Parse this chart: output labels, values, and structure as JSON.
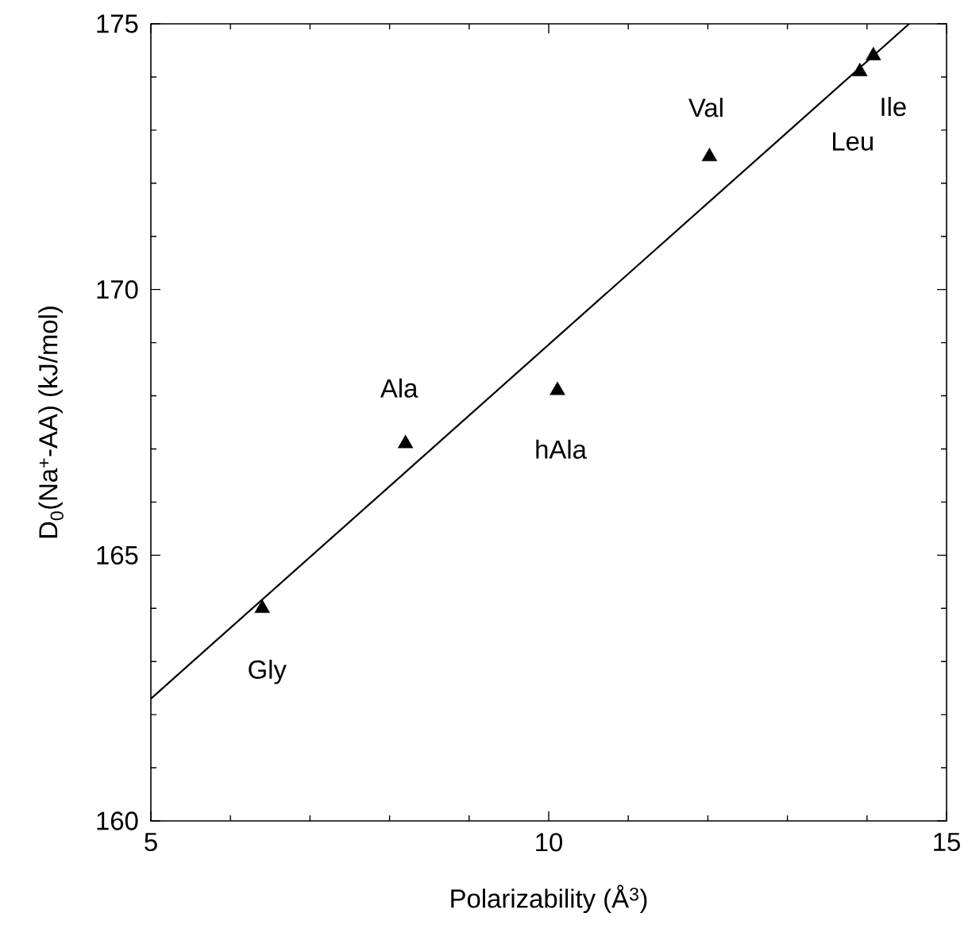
{
  "chart_data": {
    "type": "scatter",
    "xlabel": "Polarizability (Å$^{3}$)",
    "ylabel": "D$_{0}$(Na$^{+}$-AA) (kJ/mol)",
    "xlim": [
      5,
      15
    ],
    "ylim": [
      160,
      175
    ],
    "xticks": [
      5,
      10,
      15
    ],
    "yticks": [
      160,
      165,
      170,
      175
    ],
    "marker": "triangle",
    "grid": false,
    "series": [
      {
        "color": "#000000",
        "x": [
          6.4,
          8.2,
          10.11,
          12.02,
          13.91,
          14.08
        ],
        "values": [
          164.0,
          167.1,
          168.1,
          172.5,
          174.1,
          174.4
        ]
      },
      {
        "type": "line",
        "color": "#000000",
        "marker": "none",
        "line_style": "solid",
        "x": [
          5,
          14.53
        ],
        "values": [
          162.3,
          175
        ]
      }
    ],
    "annotations": [
      {
        "text": "Gly",
        "x": 6.4,
        "y": 164.0
      },
      {
        "text": "Ala",
        "x": 8.2,
        "y": 167.1
      },
      {
        "text": "hAla",
        "x": 10.11,
        "y": 168.1
      },
      {
        "text": "Val",
        "x": 12.02,
        "y": 172.5
      },
      {
        "text": "Leu",
        "x": 13.91,
        "y": 174.1
      },
      {
        "text": "Ile",
        "x": 14.08,
        "y": 174.4
      }
    ]
  }
}
